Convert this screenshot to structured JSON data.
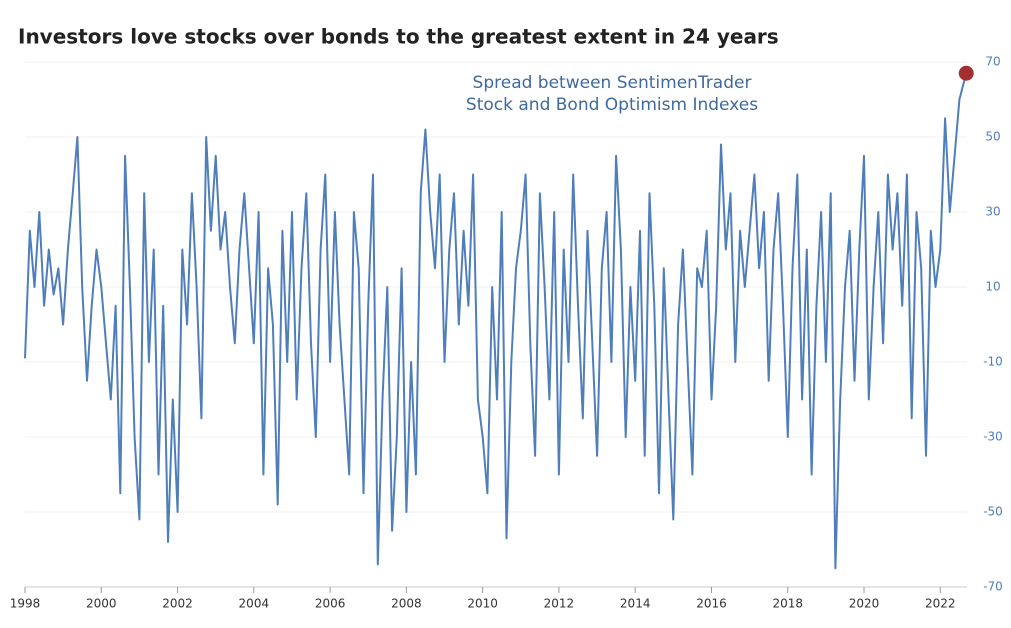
{
  "chart_data": {
    "type": "line",
    "title": "Investors love stocks over bonds to the greatest extent in 24 years",
    "annotation": [
      "Spread between SentimenTrader",
      "Stock and Bond Optimism Indexes"
    ],
    "color": "#4f7fba",
    "highlight_color": "#a3302e",
    "grid": true,
    "xlim": [
      1998,
      2022.7
    ],
    "xticks": [
      1998,
      2000,
      2002,
      2004,
      2006,
      2008,
      2010,
      2012,
      2014,
      2016,
      2018,
      2020,
      2022
    ],
    "ylim": [
      -70,
      70
    ],
    "yticks": [
      -70,
      -50,
      -30,
      -10,
      10,
      30,
      50,
      70
    ],
    "x": [
      1998,
      1998.125,
      1998.25,
      1998.375,
      1998.5,
      1998.625,
      1998.75,
      1998.875,
      1999,
      1999.125,
      1999.25,
      1999.375,
      1999.5,
      1999.625,
      1999.75,
      1999.875,
      2000,
      2000.125,
      2000.25,
      2000.375,
      2000.5,
      2000.625,
      2000.75,
      2000.875,
      2001,
      2001.125,
      2001.25,
      2001.375,
      2001.5,
      2001.625,
      2001.75,
      2001.875,
      2002,
      2002.125,
      2002.25,
      2002.375,
      2002.5,
      2002.625,
      2002.75,
      2002.875,
      2003,
      2003.125,
      2003.25,
      2003.375,
      2003.5,
      2003.625,
      2003.75,
      2003.875,
      2004,
      2004.125,
      2004.25,
      2004.375,
      2004.5,
      2004.625,
      2004.75,
      2004.875,
      2005,
      2005.125,
      2005.25,
      2005.375,
      2005.5,
      2005.625,
      2005.75,
      2005.875,
      2006,
      2006.125,
      2006.25,
      2006.375,
      2006.5,
      2006.625,
      2006.75,
      2006.875,
      2007,
      2007.125,
      2007.25,
      2007.375,
      2007.5,
      2007.625,
      2007.75,
      2007.875,
      2008,
      2008.125,
      2008.25,
      2008.375,
      2008.5,
      2008.625,
      2008.75,
      2008.875,
      2009,
      2009.125,
      2009.25,
      2009.375,
      2009.5,
      2009.625,
      2009.75,
      2009.875,
      2010,
      2010.125,
      2010.25,
      2010.375,
      2010.5,
      2010.625,
      2010.75,
      2010.875,
      2011,
      2011.125,
      2011.25,
      2011.375,
      2011.5,
      2011.625,
      2011.75,
      2011.875,
      2012,
      2012.125,
      2012.25,
      2012.375,
      2012.5,
      2012.625,
      2012.75,
      2012.875,
      2013,
      2013.125,
      2013.25,
      2013.375,
      2013.5,
      2013.625,
      2013.75,
      2013.875,
      2014,
      2014.125,
      2014.25,
      2014.375,
      2014.5,
      2014.625,
      2014.75,
      2014.875,
      2015,
      2015.125,
      2015.25,
      2015.375,
      2015.5,
      2015.625,
      2015.75,
      2015.875,
      2016,
      2016.125,
      2016.25,
      2016.375,
      2016.5,
      2016.625,
      2016.75,
      2016.875,
      2017,
      2017.125,
      2017.25,
      2017.375,
      2017.5,
      2017.625,
      2017.75,
      2017.875,
      2018,
      2018.125,
      2018.25,
      2018.375,
      2018.5,
      2018.625,
      2018.75,
      2018.875,
      2019,
      2019.125,
      2019.25,
      2019.375,
      2019.5,
      2019.625,
      2019.75,
      2019.875,
      2020,
      2020.125,
      2020.25,
      2020.375,
      2020.5,
      2020.625,
      2020.75,
      2020.875,
      2021,
      2021.125,
      2021.25,
      2021.375,
      2021.5,
      2021.625,
      2021.75,
      2021.875,
      2022,
      2022.125,
      2022.25,
      2022.375,
      2022.5,
      2022.68
    ],
    "values": [
      -9,
      25,
      10,
      30,
      5,
      20,
      8,
      15,
      0,
      20,
      35,
      50,
      10,
      -15,
      5,
      20,
      10,
      -5,
      -20,
      5,
      -45,
      45,
      10,
      -30,
      -52,
      35,
      -10,
      20,
      -40,
      5,
      -58,
      -20,
      -50,
      20,
      0,
      35,
      10,
      -25,
      50,
      25,
      45,
      20,
      30,
      10,
      -5,
      20,
      35,
      15,
      -5,
      30,
      -40,
      15,
      0,
      -48,
      25,
      -10,
      30,
      -20,
      15,
      35,
      -5,
      -30,
      20,
      40,
      -10,
      30,
      0,
      -20,
      -40,
      30,
      15,
      -45,
      5,
      40,
      -64,
      -20,
      10,
      -55,
      -30,
      15,
      -50,
      -10,
      -40,
      35,
      52,
      30,
      15,
      40,
      -10,
      20,
      35,
      0,
      25,
      5,
      40,
      -20,
      -30,
      -45,
      10,
      -20,
      30,
      -57,
      -10,
      15,
      25,
      40,
      -5,
      -35,
      35,
      10,
      -20,
      30,
      -40,
      20,
      -10,
      40,
      5,
      -25,
      25,
      -5,
      -35,
      15,
      30,
      -10,
      45,
      20,
      -30,
      10,
      -15,
      25,
      -35,
      35,
      5,
      -45,
      15,
      -20,
      -52,
      0,
      20,
      -10,
      -40,
      15,
      10,
      25,
      -20,
      5,
      48,
      20,
      35,
      -10,
      25,
      10,
      25,
      40,
      15,
      30,
      -15,
      20,
      35,
      5,
      -30,
      15,
      40,
      -20,
      20,
      -40,
      5,
      30,
      -10,
      35,
      -65,
      -20,
      10,
      25,
      -15,
      20,
      45,
      -20,
      10,
      30,
      -5,
      40,
      20,
      35,
      5,
      40,
      -25,
      30,
      15,
      -35,
      25,
      10,
      20,
      55,
      30,
      45,
      60,
      67
    ]
  }
}
